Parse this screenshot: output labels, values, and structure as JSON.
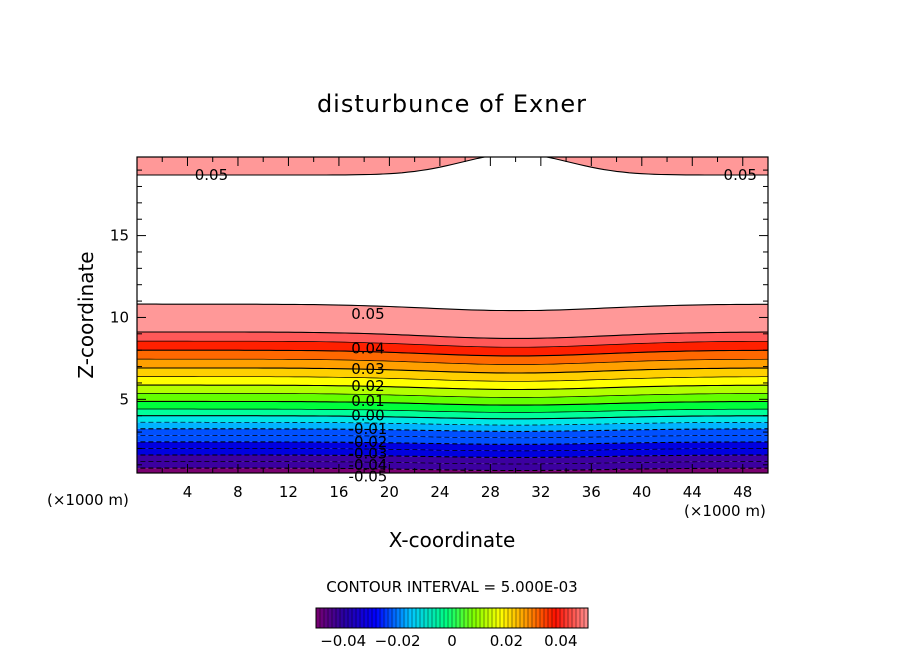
{
  "chart_data": {
    "type": "heatmap",
    "title": "disturbunce of Exner",
    "xlabel": "X-coordinate",
    "ylabel": "Z-coordinate",
    "x_unit_left": "(×1000 m)",
    "x_unit_right": "(×1000 m)",
    "xlim": [
      0,
      50
    ],
    "ylim": [
      0.5,
      19.8
    ],
    "x_ticks": [
      4,
      8,
      12,
      16,
      20,
      24,
      28,
      32,
      36,
      40,
      44,
      48
    ],
    "y_ticks": [
      5,
      10,
      15
    ],
    "contour_interval_label": "CONTOUR INTERVAL = 5.000E-03",
    "colorbar": {
      "range": [
        -0.05,
        0.05
      ],
      "ticks": [
        -0.04,
        -0.02,
        0,
        0.02,
        0.04
      ],
      "tick_labels": [
        "−0.04",
        "−0.02",
        "0",
        "0.02",
        "0.04"
      ]
    },
    "contour_labels": [
      {
        "text": "0.05",
        "x": 18.3,
        "z": 10.2
      },
      {
        "text": "0.04",
        "x": 18.3,
        "z": 8.1
      },
      {
        "text": "0.03",
        "x": 18.3,
        "z": 6.85
      },
      {
        "text": "0.02",
        "x": 18.3,
        "z": 5.8
      },
      {
        "text": "0.01",
        "x": 18.3,
        "z": 4.9
      },
      {
        "text": "0.00",
        "x": 18.3,
        "z": 4.0
      },
      {
        "text": "-0.01",
        "x": 18.3,
        "z": 3.2
      },
      {
        "text": "-0.02",
        "x": 18.3,
        "z": 2.4
      },
      {
        "text": "-0.03",
        "x": 18.3,
        "z": 1.7
      },
      {
        "text": "-0.04",
        "x": 18.3,
        "z": 1.0
      },
      {
        "text": "-0.05",
        "x": 18.3,
        "z": 0.3
      },
      {
        "text": "0.05",
        "x": 5.9,
        "z": 18.7
      },
      {
        "text": "0.05",
        "x": 47.8,
        "z": 18.7
      }
    ]
  }
}
